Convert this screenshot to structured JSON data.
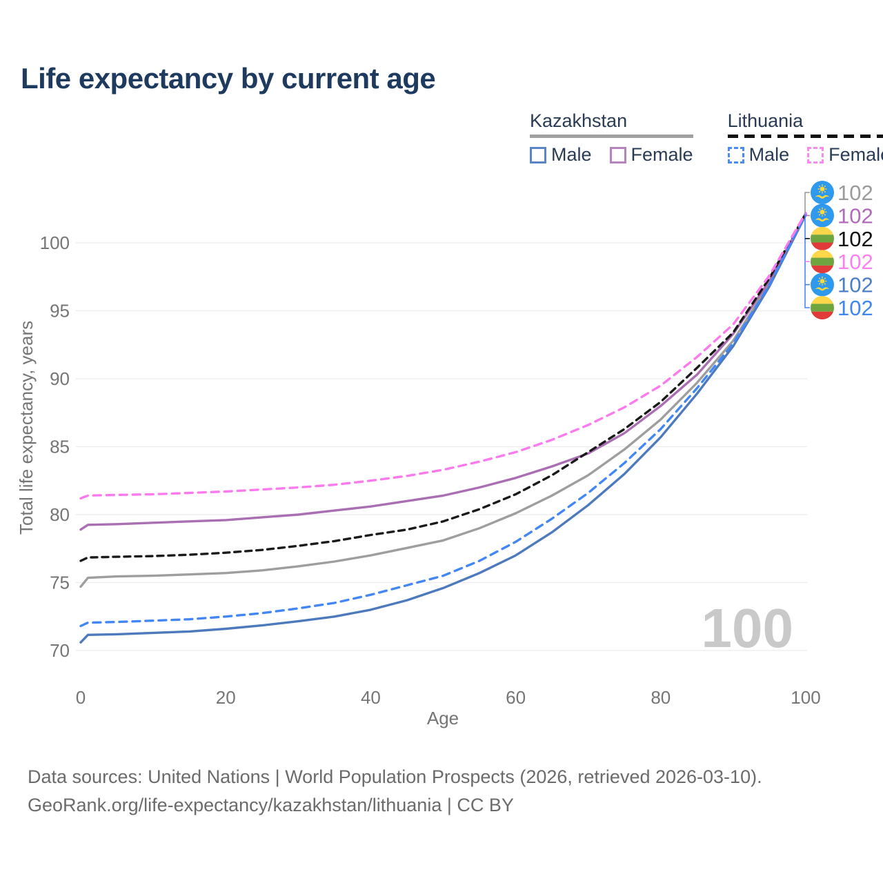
{
  "title": "Life expectancy by current age",
  "legend": {
    "groups": [
      {
        "country": "Kazakhstan",
        "line_style": "solid",
        "items": [
          {
            "label": "Male",
            "swatch_color": "#5b84c6"
          },
          {
            "label": "Female",
            "swatch_color": "#b583bd"
          }
        ]
      },
      {
        "country": "Lithuania",
        "line_style": "dashed",
        "items": [
          {
            "label": "Male",
            "swatch_color": "#4a8cf7"
          },
          {
            "label": "Female",
            "swatch_color": "#fb8bf0"
          }
        ]
      }
    ]
  },
  "watermark_age": "100",
  "footer": {
    "line1": "Data sources: United Nations | World Population Prospects (2026, retrieved 2026-03-10).",
    "line2": "GeoRank.org/life-expectancy/kazakhstan/lithuania | CC BY"
  },
  "chart_data": {
    "type": "line",
    "title": "Life expectancy by current age",
    "xlabel": "Age",
    "ylabel": "Total life expectancy, years",
    "xlim": [
      0,
      100
    ],
    "ylim": [
      70,
      103
    ],
    "xticks": [
      0,
      20,
      40,
      60,
      80,
      100
    ],
    "yticks": [
      70,
      75,
      80,
      85,
      90,
      95,
      100
    ],
    "grid": true,
    "legend_position": "top-right",
    "x": [
      0,
      1,
      5,
      10,
      15,
      20,
      25,
      30,
      35,
      40,
      45,
      50,
      55,
      60,
      65,
      70,
      75,
      80,
      85,
      90,
      95,
      100
    ],
    "series": [
      {
        "name": "Kazakhstan (both sexes)",
        "country": "Kazakhstan",
        "sex": "both",
        "color": "#9e9e9e",
        "dash": "solid",
        "flag": "kz",
        "label_row": 0,
        "z": 1,
        "end_label": "102",
        "label_color": "#9a9a9a",
        "values": [
          74.7,
          75.35,
          75.45,
          75.5,
          75.6,
          75.7,
          75.9,
          76.2,
          76.55,
          77.0,
          77.55,
          78.1,
          79.0,
          80.1,
          81.4,
          82.9,
          84.8,
          87.0,
          89.7,
          92.8,
          97.0,
          102.1
        ]
      },
      {
        "name": "Kazakhstan Male",
        "country": "Kazakhstan",
        "sex": "male",
        "color": "#4d79bd",
        "dash": "solid",
        "flag": "kz",
        "label_row": 4,
        "z": 2,
        "end_label": "102",
        "label_color": "#4b7ec6",
        "values": [
          70.6,
          71.15,
          71.2,
          71.3,
          71.4,
          71.6,
          71.85,
          72.15,
          72.5,
          73.0,
          73.7,
          74.6,
          75.7,
          77.0,
          78.7,
          80.7,
          83.0,
          85.7,
          88.9,
          92.4,
          96.8,
          102.05
        ]
      },
      {
        "name": "Kazakhstan Female",
        "country": "Kazakhstan",
        "sex": "female",
        "color": "#a96fb2",
        "dash": "solid",
        "flag": "kz",
        "label_row": 1,
        "z": 3,
        "end_label": "102",
        "label_color": "#b06ab8",
        "values": [
          78.9,
          79.25,
          79.3,
          79.4,
          79.5,
          79.6,
          79.8,
          80.0,
          80.3,
          80.6,
          81.0,
          81.4,
          82.0,
          82.7,
          83.55,
          84.5,
          86.0,
          88.0,
          90.3,
          93.3,
          97.2,
          102.1
        ]
      },
      {
        "name": "Lithuania (both sexes)",
        "country": "Lithuania",
        "sex": "both",
        "color": "#1a1a1a",
        "dash": "dashed",
        "flag": "lt",
        "label_row": 2,
        "z": 4,
        "end_label": "102",
        "label_color": "#111111",
        "values": [
          76.6,
          76.85,
          76.9,
          76.95,
          77.05,
          77.2,
          77.4,
          77.7,
          78.05,
          78.5,
          78.9,
          79.5,
          80.4,
          81.5,
          82.9,
          84.6,
          86.3,
          88.3,
          90.8,
          93.4,
          97.4,
          102.15
        ]
      },
      {
        "name": "Lithuania Male",
        "country": "Lithuania",
        "sex": "male",
        "color": "#4287f5",
        "dash": "dashed",
        "flag": "lt",
        "label_row": 5,
        "z": 5,
        "end_label": "102",
        "label_color": "#3f86f2",
        "values": [
          71.8,
          72.05,
          72.1,
          72.2,
          72.3,
          72.5,
          72.75,
          73.1,
          73.5,
          74.1,
          74.8,
          75.5,
          76.6,
          78.0,
          79.7,
          81.6,
          83.8,
          86.3,
          89.3,
          92.6,
          96.9,
          102.1
        ]
      },
      {
        "name": "Lithuania Female",
        "country": "Lithuania",
        "sex": "female",
        "color": "#fb7bef",
        "dash": "dashed",
        "flag": "lt",
        "label_row": 3,
        "z": 6,
        "end_label": "102",
        "label_color": "#fb80f0",
        "values": [
          81.2,
          81.4,
          81.45,
          81.5,
          81.6,
          81.7,
          81.85,
          82.0,
          82.2,
          82.5,
          82.85,
          83.3,
          83.9,
          84.6,
          85.5,
          86.6,
          87.9,
          89.5,
          91.6,
          94.0,
          97.6,
          102.2
        ]
      }
    ]
  }
}
